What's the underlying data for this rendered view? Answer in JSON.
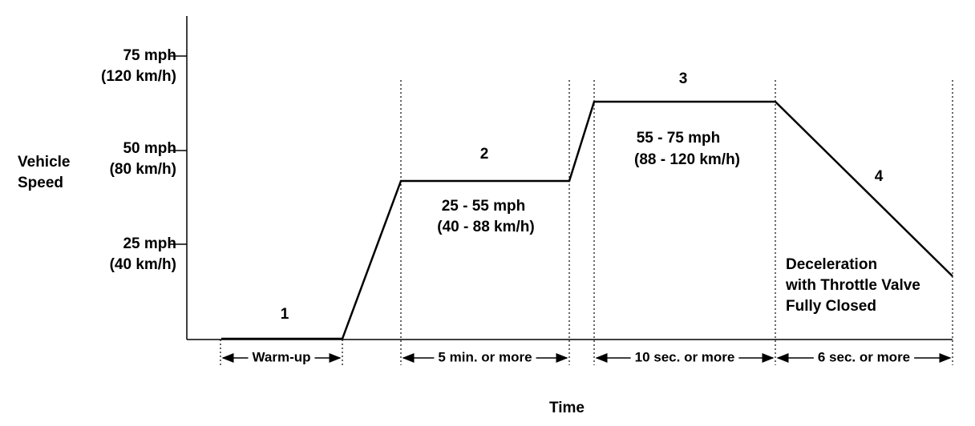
{
  "axis": {
    "y_label": [
      "Vehicle",
      "Speed"
    ],
    "x_label": "Time",
    "y_ticks": [
      {
        "mph": "75 mph",
        "kmh": "(120 km/h)"
      },
      {
        "mph": "50 mph",
        "kmh": "(80 km/h)"
      },
      {
        "mph": "25 mph",
        "kmh": "(40 km/h)"
      }
    ]
  },
  "phases": [
    {
      "number": "1",
      "duration": "Warm-up"
    },
    {
      "number": "2",
      "range": "25 - 55 mph",
      "range_metric": "(40 - 88 km/h)",
      "duration": "5 min. or more"
    },
    {
      "number": "3",
      "range": "55 - 75 mph",
      "range_metric": "(88 - 120 km/h)",
      "duration": "10 sec. or more"
    },
    {
      "number": "4",
      "note": [
        "Deceleration",
        "with Throttle Valve",
        "Fully Closed"
      ],
      "duration": "6 sec. or more"
    }
  ]
}
